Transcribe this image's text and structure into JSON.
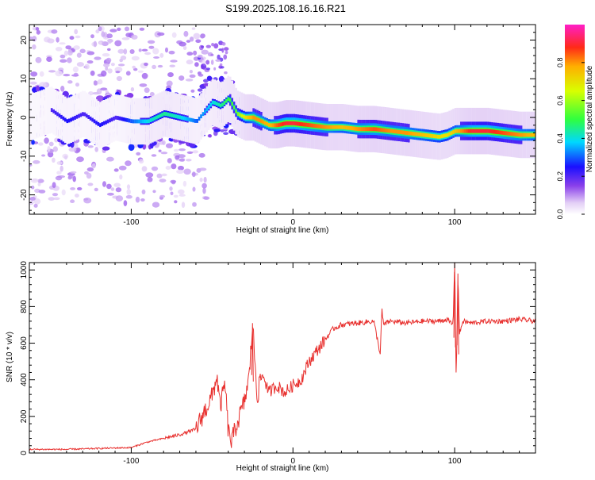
{
  "title": "S199.2025.108.16.16.R21",
  "chart_data": [
    {
      "type": "heatmap",
      "xlabel": "Height of straight line (km)",
      "ylabel": "Frequency (Hz)",
      "xlim": [
        -163,
        150
      ],
      "ylim": [
        -25,
        24
      ],
      "xticks": [
        -100,
        0,
        100
      ],
      "yticks": [
        -20,
        -10,
        0,
        10,
        20
      ],
      "ridge": {
        "x": [
          -163,
          -150,
          -140,
          -130,
          -120,
          -110,
          -100,
          -90,
          -80,
          -70,
          -60,
          -50,
          -45,
          -40,
          -35,
          -30,
          -25,
          -20,
          -15,
          -10,
          -5,
          0,
          10,
          20,
          30,
          40,
          50,
          60,
          70,
          80,
          90,
          95,
          100,
          110,
          120,
          130,
          140,
          150
        ],
        "freq": [
          0,
          2,
          -1,
          1,
          -2,
          0,
          -1,
          -1,
          1,
          0,
          -1,
          4,
          3,
          5,
          1,
          0,
          0,
          -1,
          -2,
          -2,
          -1.5,
          -1.5,
          -2,
          -2.5,
          -2.5,
          -3,
          -3,
          -3.5,
          -4,
          -4.5,
          -5,
          -4.5,
          -3.5,
          -3.5,
          -3.5,
          -4,
          -4.5,
          -4.5
        ],
        "amplitude": [
          0.15,
          0.2,
          0.25,
          0.2,
          0.25,
          0.2,
          0.3,
          0.4,
          0.45,
          0.4,
          0.3,
          0.4,
          0.45,
          0.5,
          0.55,
          0.7,
          0.8,
          0.8,
          0.75,
          0.85,
          0.9,
          0.9,
          0.85,
          0.8,
          0.75,
          0.8,
          0.85,
          0.8,
          0.8,
          0.75,
          0.7,
          0.7,
          0.75,
          0.9,
          0.9,
          0.85,
          0.8,
          0.75
        ]
      },
      "colorbar": {
        "label": "Normalized spectral amplitude",
        "ticks": [
          "0.0",
          "0.2",
          "0.4",
          "0.6",
          "0.8"
        ],
        "range": [
          0,
          1
        ]
      }
    },
    {
      "type": "line",
      "xlabel": "Height of straight line (km)",
      "ylabel": "SNR (10 * v/v)",
      "xlim": [
        -163,
        150
      ],
      "ylim": [
        0,
        1040
      ],
      "xticks": [
        -100,
        0,
        100
      ],
      "yticks": [
        0,
        200,
        400,
        600,
        800,
        1000
      ],
      "color": "#e8312f",
      "series": [
        {
          "name": "SNR",
          "x": [
            -163,
            -140,
            -120,
            -100,
            -90,
            -80,
            -70,
            -60,
            -55,
            -50,
            -47,
            -45,
            -42,
            -40,
            -38,
            -35,
            -30,
            -27,
            -25,
            -22,
            -20,
            -18,
            -15,
            -10,
            -5,
            0,
            5,
            10,
            15,
            20,
            25,
            30,
            40,
            50,
            54,
            55,
            56,
            60,
            70,
            80,
            90,
            95,
            99,
            100,
            101,
            102,
            103,
            105,
            110,
            120,
            130,
            140,
            150
          ],
          "y": [
            20,
            20,
            25,
            30,
            60,
            80,
            100,
            130,
            220,
            310,
            420,
            250,
            380,
            120,
            60,
            150,
            280,
            420,
            710,
            300,
            410,
            420,
            330,
            370,
            330,
            370,
            400,
            500,
            560,
            620,
            680,
            700,
            710,
            720,
            540,
            780,
            700,
            720,
            710,
            720,
            720,
            730,
            700,
            1050,
            380,
            980,
            650,
            720,
            710,
            720,
            720,
            730,
            720
          ]
        }
      ]
    }
  ]
}
